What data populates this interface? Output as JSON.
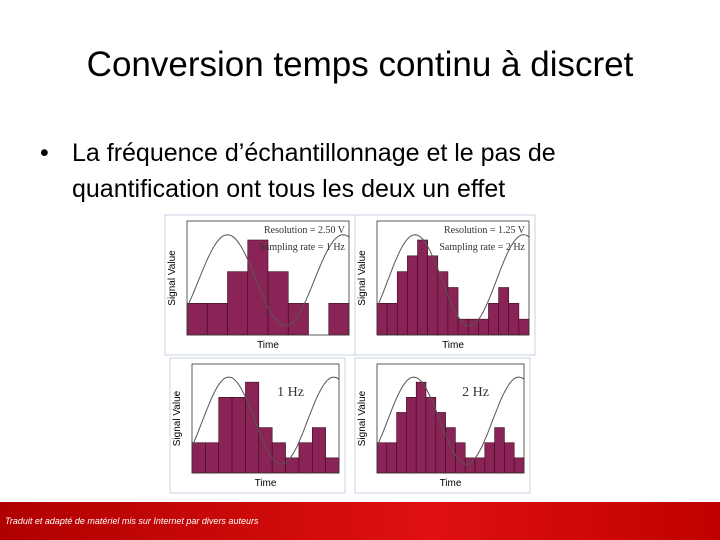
{
  "title": "Conversion temps continu à discret",
  "bullet": "La fréquence d’échantillonnage et le pas de quantification ont tous les deux un effet",
  "footer": "Traduit et adapté de matériel mis sur Internet par divers auteurs",
  "figure": {
    "panels": [
      {
        "annotations": [
          "Resolution = 2.50 V",
          "Sampling rate = 1 Hz"
        ],
        "y_label": "Signal Value",
        "x_label": "Time",
        "values": [
          2.5,
          2.5,
          5,
          7.5,
          5,
          2.5,
          0,
          2.5
        ],
        "ylim": [
          0,
          9
        ]
      },
      {
        "annotations": [
          "Resolution = 1.25 V",
          "Sampling rate = 2 Hz"
        ],
        "y_label": "Signal Value",
        "x_label": "Time",
        "values": [
          2.5,
          2.5,
          5,
          6.25,
          7.5,
          6.25,
          5,
          3.75,
          1.25,
          1.25,
          1.25,
          2.5,
          3.75,
          2.5,
          1.25
        ],
        "ylim": [
          0,
          9
        ]
      },
      {
        "annotations": [
          "1 Hz"
        ],
        "y_label": "Signal Value",
        "x_label": "Time",
        "values": [
          2.5,
          2.5,
          6.25,
          6.25,
          7.5,
          3.75,
          2.5,
          1.25,
          2.5,
          3.75,
          1.25
        ],
        "ylim": [
          0,
          9
        ]
      },
      {
        "annotations": [
          "2 Hz"
        ],
        "y_label": "Signal Value",
        "x_label": "Time",
        "values": [
          2.5,
          2.5,
          5,
          6.25,
          7.5,
          6.25,
          5,
          3.75,
          2.5,
          1.25,
          1.25,
          2.5,
          3.75,
          2.5,
          1.25
        ],
        "ylim": [
          0,
          9
        ]
      }
    ]
  }
}
